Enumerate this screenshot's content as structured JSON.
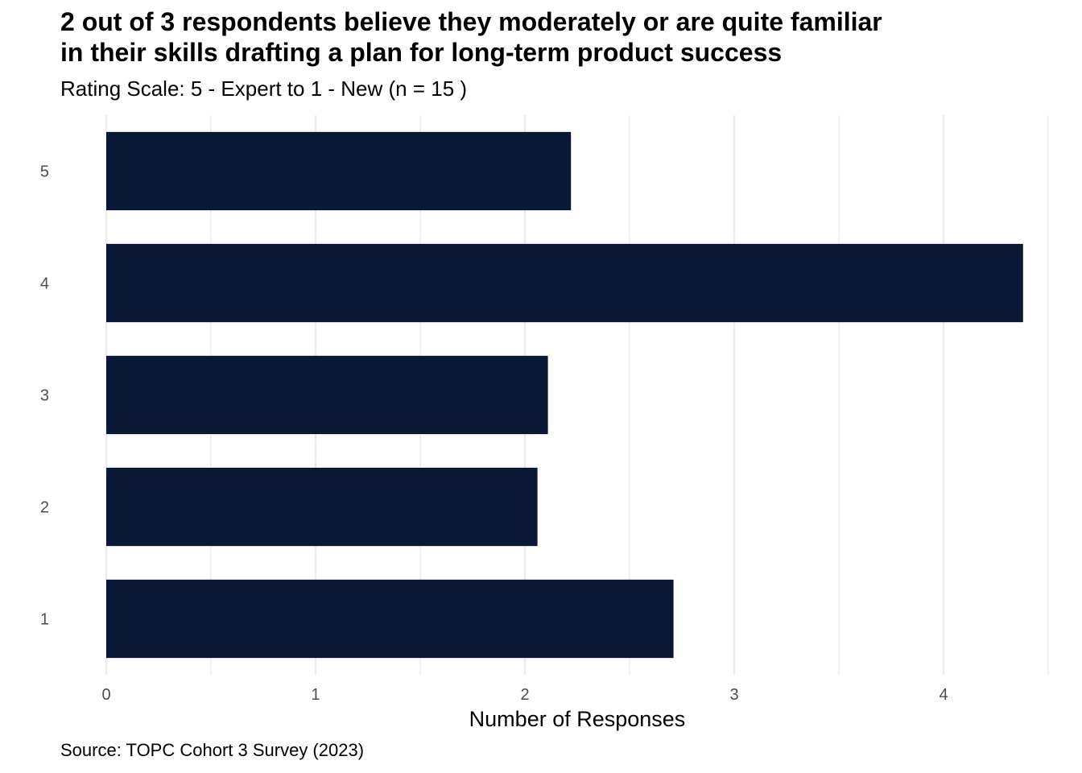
{
  "chart_data": {
    "type": "bar",
    "orientation": "horizontal",
    "title_lines": [
      "2 out of 3 respondents believe they moderately or are quite familiar",
      "in their skills drafting a plan for long-term product success"
    ],
    "subtitle": "Rating Scale: 5 - Expert to 1 - New (n = 15 )",
    "caption": "Source: TOPC Cohort 3 Survey (2023)",
    "xlabel": "Number of Responses",
    "ylabel": "",
    "categories": [
      "5",
      "4",
      "3",
      "2",
      "1"
    ],
    "values": [
      2.22,
      4.38,
      2.11,
      2.06,
      2.71
    ],
    "xlim": [
      0,
      4.5
    ],
    "xticks": [
      "0",
      "1",
      "2",
      "3",
      "4"
    ],
    "grid": "vertical",
    "bar_color": "#0a1835",
    "grid_color": "#ebebeb"
  }
}
